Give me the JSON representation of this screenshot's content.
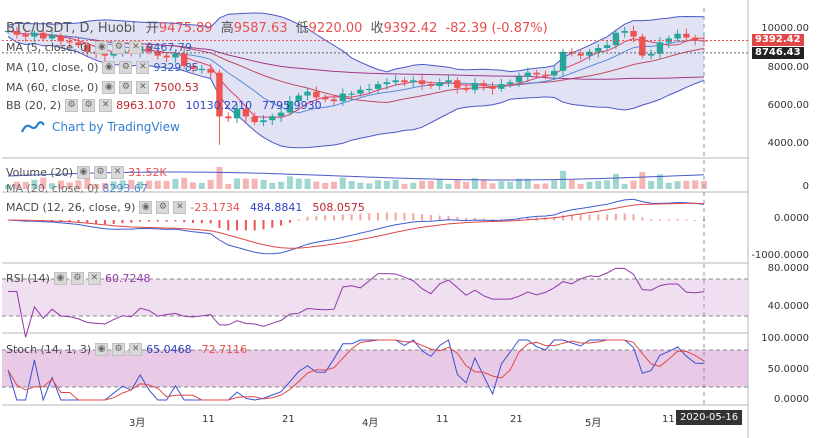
{
  "header": {
    "symbol": "BTC/USDT, D, Huobi",
    "open_label": "开",
    "open": "9475.89",
    "high_label": "高",
    "high": "9587.63",
    "low_label": "低",
    "low": "9220.00",
    "close_label": "收",
    "close": "9392.42",
    "change": "-82.39 (-0.87%)"
  },
  "indicators": {
    "ma5": {
      "label": "MA (5, close, 0)",
      "value": "9467.79"
    },
    "ma10": {
      "label": "MA (10, close, 0)",
      "value": "9329.85"
    },
    "ma60": {
      "label": "MA (60, close, 0)",
      "value": "7500.53"
    },
    "bb": {
      "label": "BB (20, 2)",
      "v1": "8963.1070",
      "v2": "10130.2210",
      "v3": "7795.9930"
    },
    "volume": {
      "label": "Volume (20)",
      "value": "31.52K",
      "ma_label": "MA (20, close, 0)",
      "ma_value": "8293.67"
    },
    "macd": {
      "label": "MACD (12, 26, close, 9)",
      "v1": "-23.1734",
      "v2": "484.8841",
      "v3": "508.0575"
    },
    "rsi": {
      "label": "RSI (14)",
      "value": "60.7248"
    },
    "stoch": {
      "label": "Stoch (14, 1, 3)",
      "v1": "65.0468",
      "v2": "72.7116"
    }
  },
  "branding": {
    "powered_by": "Chart by TradingView"
  },
  "price_axis": {
    "ticks": [
      "10000.00",
      "8000.00",
      "6000.00",
      "4000.00"
    ],
    "tag_last": "9392.42",
    "tag_ma": "8746.43"
  },
  "volume_axis": {
    "ticks": [
      "0"
    ]
  },
  "macd_axis": {
    "ticks": [
      "0.0000",
      "-1000.0000"
    ]
  },
  "rsi_axis": {
    "ticks": [
      "80.0000",
      "40.0000"
    ]
  },
  "stoch_axis": {
    "ticks": [
      "100.0000",
      "50.0000",
      "0.0000"
    ]
  },
  "time_axis": {
    "labels": [
      "3月",
      "11",
      "21",
      "4月",
      "11",
      "21",
      "5月",
      "11"
    ],
    "crosshair_date": "2020-05-16"
  },
  "colors": {
    "up": "#26a69a",
    "down": "#ef5350",
    "bb_fill": "#d9dcf3",
    "bb_line": "#4a58c8",
    "ma": "#e0426a",
    "rsi_fill": "#f0dff0",
    "rsi_line": "#8e3aa8",
    "macd_line": "#3c5bd1",
    "signal": "#e04848"
  },
  "chart_data": {
    "type": "candlestick",
    "dates_range": [
      "2020-02-16",
      "2020-05-16"
    ],
    "closes": [
      9900,
      9700,
      9600,
      9800,
      9500,
      9650,
      9350,
      9300,
      9150,
      8800,
      8700,
      8600,
      8750,
      8900,
      8800,
      9100,
      8800,
      8600,
      8500,
      8700,
      8050,
      7900,
      7900,
      7700,
      5400,
      5300,
      5800,
      5400,
      5100,
      5200,
      5400,
      5600,
      6200,
      6500,
      6700,
      6400,
      6300,
      6200,
      6600,
      6600,
      6800,
      6850,
      7100,
      7200,
      7300,
      7200,
      7300,
      7100,
      7000,
      7200,
      7300,
      6900,
      6800,
      7150,
      7000,
      6850,
      7100,
      7200,
      7500,
      7700,
      7600,
      7550,
      7800,
      8800,
      8700,
      8600,
      8800,
      9000,
      9150,
      9800,
      9900,
      9600,
      8600,
      8700,
      9300,
      9500,
      9750,
      9550,
      9400,
      9390
    ]
  }
}
